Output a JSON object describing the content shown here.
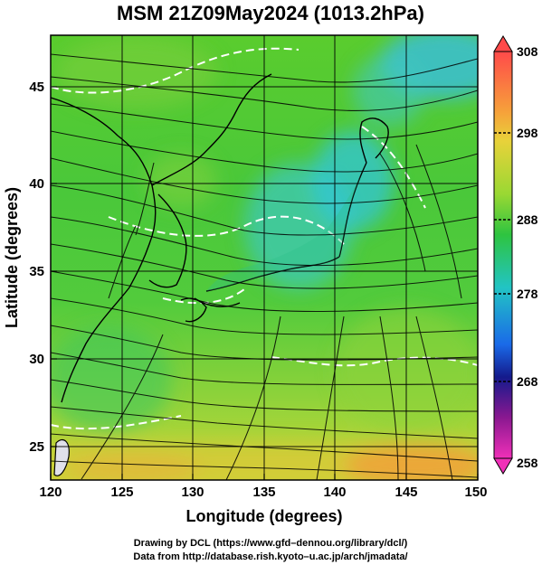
{
  "figure": {
    "title": "MSM 21Z09May2024 (1013.2hPa)",
    "xlabel": "Longitude (degrees)",
    "ylabel": "Latitude  (degrees)",
    "footer_line1": "Drawing by DCL (https://www.gfd–dennou.org/library/dcl/)",
    "footer_line2": "Data from http://database.rish.kyoto–u.ac.jp/arch/jmadata/"
  },
  "map": {
    "x_ticks": [
      "120",
      "125",
      "130",
      "135",
      "140",
      "145",
      "150"
    ],
    "y_ticks": [
      "25",
      "30",
      "35",
      "40",
      "45"
    ],
    "lon_range": [
      120,
      150
    ],
    "lat_range": [
      22.4,
      47.6
    ],
    "grid_lon": [
      125,
      130,
      135,
      140,
      145
    ],
    "grid_lat": [
      25,
      30,
      35,
      40,
      45
    ],
    "field": "surface temperature (K) with wind streamlines",
    "colors": {
      "cool": "#30c6dc",
      "mid": "#3cc64a",
      "warm": "#a8d83a",
      "hot": "#f0a23a",
      "land_line": "#000000",
      "contour": "#ffffff"
    }
  },
  "colorbar": {
    "labels": [
      "308",
      "298",
      "288",
      "278",
      "268",
      "258"
    ],
    "range": [
      258,
      308
    ],
    "stops": [
      "#ff4a4a",
      "#f4c43a",
      "#9ad833",
      "#22c444",
      "#22c4c4",
      "#1850e8",
      "#101880",
      "#8a1890",
      "#f030b8"
    ]
  }
}
